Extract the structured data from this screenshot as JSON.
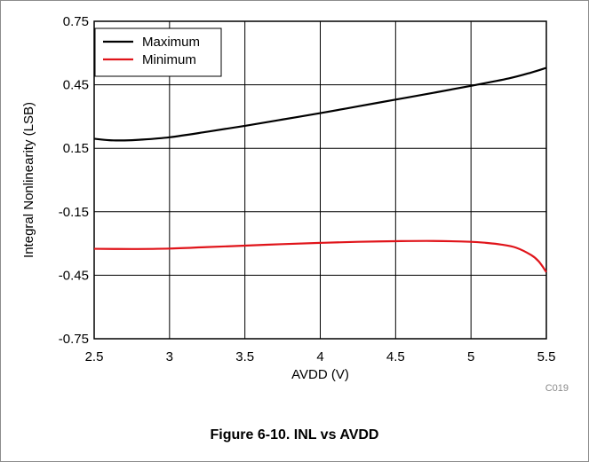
{
  "caption": "Figure 6-10. INL vs AVDD",
  "code": "C019",
  "chart_data": {
    "type": "line",
    "title": "",
    "xlabel": "AVDD (V)",
    "ylabel": "Integral Nonlinearity (LSB)",
    "xlim": [
      2.5,
      5.5
    ],
    "ylim": [
      -0.75,
      0.75
    ],
    "xticks": [
      2.5,
      3,
      3.5,
      4,
      4.5,
      5,
      5.5
    ],
    "yticks": [
      -0.75,
      -0.45,
      -0.15,
      0.15,
      0.45,
      0.75
    ],
    "xtick_labels": [
      "2.5",
      "3",
      "3.5",
      "4",
      "4.5",
      "5",
      "5.5"
    ],
    "ytick_labels": [
      "-0.75",
      "-0.45",
      "-0.15",
      "0.15",
      "0.45",
      "0.75"
    ],
    "grid": true,
    "legend_position": "top-left",
    "series": [
      {
        "name": "Maximum",
        "color": "#000000",
        "x": [
          2.5,
          2.6,
          2.7,
          2.8,
          3.0,
          3.25,
          3.5,
          3.75,
          4.0,
          4.25,
          4.5,
          4.75,
          5.0,
          5.25,
          5.4,
          5.5
        ],
        "y": [
          0.195,
          0.188,
          0.187,
          0.19,
          0.202,
          0.228,
          0.256,
          0.286,
          0.316,
          0.348,
          0.38,
          0.412,
          0.445,
          0.48,
          0.508,
          0.53
        ]
      },
      {
        "name": "Minimum",
        "color": "#e0141a",
        "x": [
          2.5,
          2.75,
          3.0,
          3.25,
          3.5,
          3.75,
          4.0,
          4.25,
          4.5,
          4.75,
          5.0,
          5.1,
          5.2,
          5.3,
          5.4,
          5.45,
          5.5
        ],
        "y": [
          -0.325,
          -0.326,
          -0.324,
          -0.317,
          -0.31,
          -0.303,
          -0.297,
          -0.292,
          -0.289,
          -0.288,
          -0.292,
          -0.297,
          -0.305,
          -0.32,
          -0.355,
          -0.385,
          -0.435
        ]
      }
    ]
  }
}
